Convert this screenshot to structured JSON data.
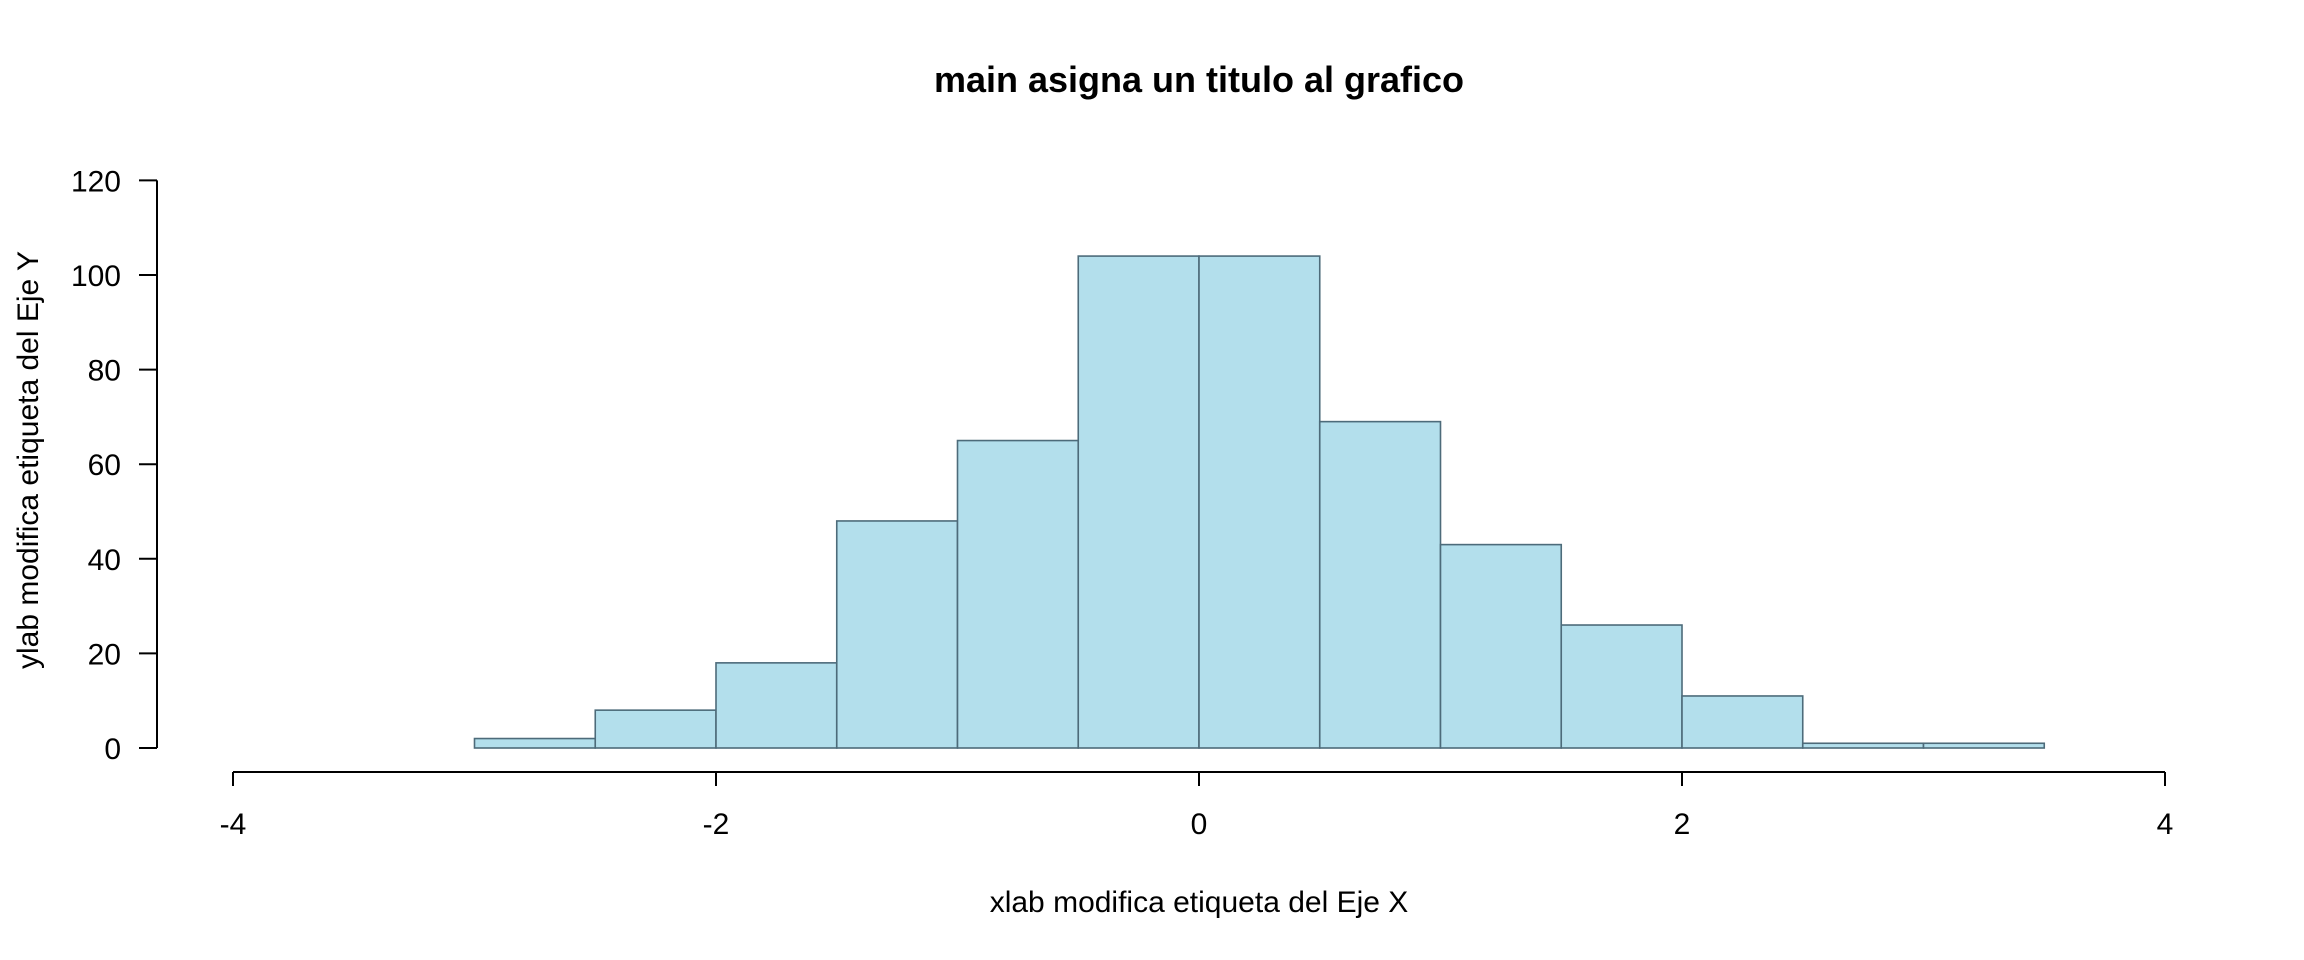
{
  "chart_data": {
    "type": "bar",
    "title": "main asigna un titulo al grafico",
    "xlabel": "xlab modifica etiqueta del Eje X",
    "ylabel": "ylab modifica etiqueta del Eje Y",
    "xlim": [
      -4,
      4
    ],
    "ylim": [
      0,
      120
    ],
    "x_ticks": [
      "-4",
      "-2",
      "0",
      "2",
      "4"
    ],
    "y_ticks": [
      "0",
      "20",
      "40",
      "60",
      "80",
      "100",
      "120"
    ],
    "bin_edges": [
      -3,
      -2.5,
      -2,
      -1.5,
      -1,
      -0.5,
      0,
      0.5,
      1,
      1.5,
      2,
      2.5,
      3,
      3.5
    ],
    "values": [
      2,
      8,
      18,
      48,
      65,
      104,
      104,
      69,
      43,
      26,
      11,
      1,
      1
    ],
    "grid": false,
    "colors": {
      "bar_fill": "#b3dfec",
      "bar_stroke": "#4d6b7a"
    }
  }
}
